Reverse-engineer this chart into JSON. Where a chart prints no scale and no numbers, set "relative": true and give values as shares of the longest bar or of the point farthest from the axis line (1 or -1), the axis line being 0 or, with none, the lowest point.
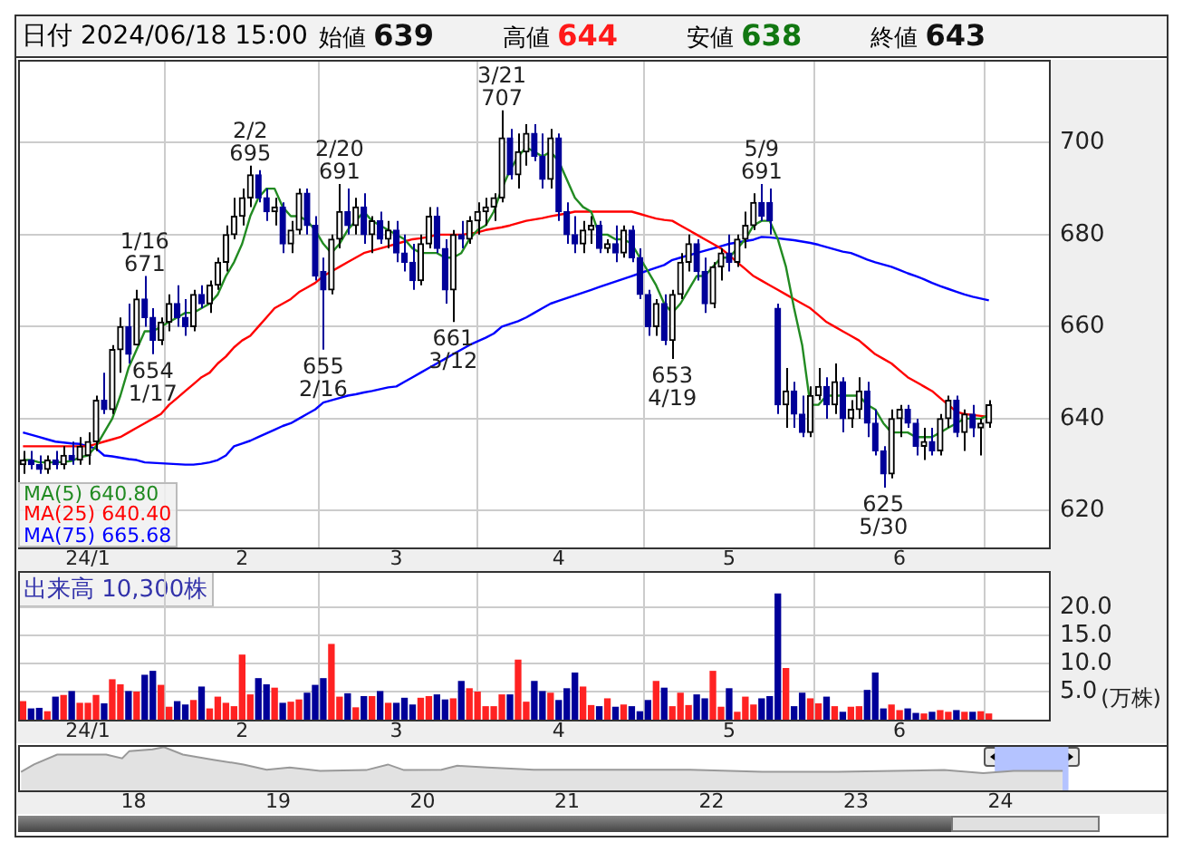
{
  "chart_data": [
    {
      "type": "candlestick",
      "title": "日付 2024/06/18 15:00",
      "annotations": [
        "始値 639",
        "高値 644",
        "安値 638",
        "終値 643",
        {
          "text": "1/16\n671",
          "y": 671
        },
        {
          "text": "654\n1/17",
          "y": 654
        },
        {
          "text": "2/2\n695",
          "y": 695
        },
        {
          "text": "655\n2/16",
          "y": 655
        },
        {
          "text": "2/20\n691",
          "y": 691
        },
        {
          "text": "661\n3/12",
          "y": 661
        },
        {
          "text": "3/21\n707",
          "y": 707
        },
        {
          "text": "653\n4/19",
          "y": 653
        },
        {
          "text": "5/9\n691",
          "y": 691
        },
        {
          "text": "625\n5/30",
          "y": 625
        }
      ],
      "categories": [
        null,
        null,
        null,
        null,
        null,
        null,
        null,
        null,
        "24/1",
        null,
        null,
        null,
        null,
        null,
        null,
        null,
        null,
        null,
        null,
        null,
        null,
        null,
        null,
        null,
        null,
        null,
        null,
        "2",
        null,
        null,
        null,
        null,
        null,
        null,
        null,
        null,
        null,
        null,
        null,
        null,
        null,
        null,
        null,
        null,
        null,
        null,
        "3",
        null,
        null,
        null,
        null,
        null,
        null,
        null,
        null,
        null,
        null,
        null,
        null,
        null,
        null,
        null,
        null,
        null,
        null,
        null,
        "4",
        null,
        null,
        null,
        null,
        null,
        null,
        null,
        null,
        null,
        null,
        null,
        null,
        null,
        null,
        null,
        null,
        null,
        null,
        null,
        null,
        "5",
        null,
        null,
        null,
        null,
        null,
        null,
        null,
        null,
        null,
        null,
        null,
        null,
        null,
        null,
        null,
        null,
        null,
        null,
        null,
        null,
        "6",
        null,
        null,
        null,
        null,
        null,
        null,
        null,
        null,
        null,
        null,
        null
      ],
      "ohlc": [
        [
          630,
          633,
          628,
          631
        ],
        [
          631,
          633,
          629,
          630
        ],
        [
          630,
          632,
          628,
          629
        ],
        [
          629,
          632,
          628,
          631
        ],
        [
          631,
          633,
          629,
          630
        ],
        [
          630,
          634,
          629,
          632
        ],
        [
          632,
          635,
          630,
          631
        ],
        [
          631,
          636,
          630,
          634
        ],
        [
          632,
          637,
          630,
          635
        ],
        [
          635,
          645,
          633,
          644
        ],
        [
          644,
          650,
          641,
          642
        ],
        [
          642,
          656,
          641,
          655
        ],
        [
          655,
          662,
          650,
          660
        ],
        [
          660,
          665,
          652,
          654
        ],
        [
          656,
          668,
          656,
          666
        ],
        [
          666,
          671,
          660,
          662
        ],
        [
          662,
          664,
          654,
          657
        ],
        [
          657,
          662,
          656,
          661
        ],
        [
          661,
          667,
          659,
          665
        ],
        [
          665,
          669,
          660,
          662
        ],
        [
          662,
          666,
          658,
          660
        ],
        [
          660,
          668,
          659,
          667
        ],
        [
          667,
          669,
          664,
          665
        ],
        [
          665,
          670,
          663,
          669
        ],
        [
          669,
          675,
          668,
          674
        ],
        [
          674,
          682,
          672,
          680
        ],
        [
          680,
          688,
          679,
          684
        ],
        [
          684,
          690,
          682,
          688
        ],
        [
          688,
          695,
          686,
          693
        ],
        [
          693,
          694,
          687,
          688
        ],
        [
          688,
          690,
          683,
          685
        ],
        [
          685,
          688,
          682,
          686
        ],
        [
          686,
          687,
          676,
          678
        ],
        [
          678,
          683,
          676,
          681
        ],
        [
          681,
          690,
          680,
          689
        ],
        [
          689,
          690,
          680,
          682
        ],
        [
          682,
          684,
          670,
          671
        ],
        [
          672,
          675,
          655,
          668
        ],
        [
          668,
          680,
          667,
          679
        ],
        [
          679,
          691,
          677,
          685
        ],
        [
          685,
          690,
          680,
          682
        ],
        [
          682,
          688,
          680,
          686
        ],
        [
          686,
          689,
          678,
          680
        ],
        [
          680,
          684,
          676,
          683
        ],
        [
          683,
          685,
          678,
          679
        ],
        [
          679,
          683,
          677,
          681
        ],
        [
          681,
          683,
          674,
          676
        ],
        [
          676,
          680,
          672,
          674
        ],
        [
          674,
          678,
          668,
          670
        ],
        [
          670,
          680,
          669,
          678
        ],
        [
          678,
          686,
          677,
          684
        ],
        [
          684,
          686,
          676,
          677
        ],
        [
          677,
          679,
          665,
          668
        ],
        [
          668,
          681,
          661,
          680
        ],
        [
          680,
          683,
          677,
          679
        ],
        [
          679,
          684,
          678,
          683
        ],
        [
          683,
          687,
          680,
          685
        ],
        [
          685,
          688,
          682,
          686
        ],
        [
          686,
          689,
          683,
          688
        ],
        [
          688,
          707,
          687,
          701
        ],
        [
          701,
          703,
          692,
          693
        ],
        [
          693,
          702,
          690,
          698
        ],
        [
          698,
          704,
          695,
          702
        ],
        [
          702,
          704,
          696,
          697
        ],
        [
          697,
          702,
          690,
          692
        ],
        [
          692,
          703,
          690,
          701
        ],
        [
          701,
          702,
          683,
          685
        ],
        [
          685,
          687,
          678,
          680
        ],
        [
          680,
          684,
          676,
          678
        ],
        [
          678,
          683,
          676,
          681
        ],
        [
          681,
          684,
          678,
          682
        ],
        [
          682,
          683,
          676,
          677
        ],
        [
          677,
          679,
          676,
          678
        ],
        [
          678,
          682,
          674,
          676
        ],
        [
          676,
          682,
          675,
          681
        ],
        [
          681,
          682,
          674,
          675
        ],
        [
          675,
          677,
          666,
          667
        ],
        [
          667,
          668,
          658,
          660
        ],
        [
          660,
          666,
          658,
          665
        ],
        [
          665,
          667,
          656,
          657
        ],
        [
          657,
          668,
          653,
          667
        ],
        [
          667,
          676,
          666,
          674
        ],
        [
          674,
          680,
          672,
          678
        ],
        [
          678,
          679,
          670,
          672
        ],
        [
          672,
          675,
          663,
          665
        ],
        [
          665,
          674,
          664,
          673
        ],
        [
          673,
          677,
          670,
          676
        ],
        [
          676,
          680,
          672,
          674
        ],
        [
          674,
          680,
          673,
          679
        ],
        [
          679,
          685,
          677,
          682
        ],
        [
          682,
          689,
          681,
          687
        ],
        [
          687,
          691,
          683,
          684
        ],
        [
          687,
          690,
          680,
          683
        ],
        [
          664,
          665,
          641,
          643
        ],
        [
          643,
          651,
          638,
          646
        ],
        [
          646,
          648,
          638,
          641
        ],
        [
          641,
          645,
          636,
          637
        ],
        [
          637,
          647,
          636,
          645
        ],
        [
          645,
          651,
          644,
          647
        ],
        [
          647,
          649,
          640,
          643
        ],
        [
          643,
          652,
          641,
          648
        ],
        [
          648,
          649,
          637,
          640
        ],
        [
          640,
          644,
          638,
          642
        ],
        [
          642,
          649,
          640,
          646
        ],
        [
          646,
          648,
          636,
          639
        ],
        [
          639,
          642,
          632,
          633
        ],
        [
          633,
          634,
          625,
          628
        ],
        [
          628,
          642,
          627,
          640
        ],
        [
          640,
          643,
          636,
          642
        ],
        [
          642,
          643,
          638,
          639
        ],
        [
          639,
          640,
          632,
          634
        ],
        [
          634,
          638,
          631,
          635
        ],
        [
          635,
          638,
          632,
          633
        ],
        [
          633,
          641,
          632,
          640
        ],
        [
          640,
          645,
          638,
          644
        ],
        [
          644,
          645,
          636,
          637
        ],
        [
          637,
          642,
          633,
          641
        ],
        [
          641,
          643,
          636,
          638
        ],
        [
          638,
          640,
          632,
          639
        ],
        [
          639,
          644,
          638,
          643
        ]
      ],
      "colors": [
        "#000000",
        "#000099",
        "#000099",
        "#000000",
        "#000099",
        "#000000",
        "#000099",
        "#000000",
        "#000000",
        "#000000",
        "#000099",
        "#000000",
        "#000000",
        "#000099",
        "#000000",
        "#000099",
        "#000099",
        "#000000",
        "#000000",
        "#000099",
        "#000099",
        "#000000",
        "#000099",
        "#000000",
        "#000000",
        "#000000",
        "#000000",
        "#000000",
        "#000000",
        "#000099",
        "#000099",
        "#000000",
        "#000099",
        "#000000",
        "#000000",
        "#000099",
        "#000099",
        "#000099",
        "#000000",
        "#000000",
        "#000099",
        "#000000",
        "#000099",
        "#000000",
        "#000099",
        "#000000",
        "#000099",
        "#000099",
        "#000099",
        "#000000",
        "#000000",
        "#000099",
        "#000099",
        "#000000",
        "#000099",
        "#000000",
        "#000000",
        "#000000",
        "#000000",
        "#000000",
        "#000099",
        "#000000",
        "#000000",
        "#000099",
        "#000099",
        "#000000",
        "#000099",
        "#000099",
        "#000099",
        "#000000",
        "#000000",
        "#000099",
        "#000000",
        "#000099",
        "#000000",
        "#000099",
        "#000099",
        "#000099",
        "#000000",
        "#000099",
        "#000000",
        "#000000",
        "#000000",
        "#000099",
        "#000099",
        "#000000",
        "#000000",
        "#000099",
        "#000000",
        "#000000",
        "#000000",
        "#000099",
        "#000099",
        "#000099",
        "#000000",
        "#000099",
        "#000099",
        "#000000",
        "#000000",
        "#000099",
        "#000000",
        "#000099",
        "#000000",
        "#000000",
        "#000099",
        "#000099",
        "#000099",
        "#000000",
        "#000000",
        "#000099",
        "#000099",
        "#000000",
        "#000099",
        "#000000",
        "#000000",
        "#000099",
        "#000000",
        "#000099",
        "#000000",
        "#000000"
      ],
      "series": [
        {
          "name": "MA(5) 640.80",
          "type": "line",
          "color": "#228b22",
          "values": [
            631,
            631,
            630.5,
            630.5,
            630.5,
            630.6,
            630.8,
            631.6,
            632,
            634,
            637,
            640,
            645,
            651,
            655,
            659,
            659,
            660,
            661,
            662,
            663,
            663,
            664,
            665,
            667,
            671,
            674,
            678,
            684,
            688,
            690,
            690,
            686,
            684,
            684,
            683,
            681,
            678,
            676,
            678,
            681,
            683,
            685,
            683,
            682,
            681,
            680,
            679,
            677,
            676,
            676,
            676,
            675,
            675,
            676,
            679,
            681,
            682,
            685,
            690,
            694,
            697,
            699,
            698,
            697,
            698,
            696,
            692,
            688,
            686,
            685,
            680,
            680,
            679,
            679,
            678,
            675,
            672,
            669,
            665,
            663,
            665,
            668,
            671,
            671,
            673,
            675,
            675,
            677,
            679,
            682,
            683,
            683,
            679,
            673,
            664,
            656,
            643,
            643,
            645,
            645,
            645,
            645,
            645,
            643,
            642,
            639,
            637,
            637,
            637,
            636,
            636,
            636,
            637,
            638,
            639,
            640,
            640,
            640,
            640.8
          ]
        },
        {
          "name": "MA(25) 640.40",
          "type": "line",
          "color": "#ff0000",
          "values": [
            634,
            634,
            634,
            634,
            634,
            634,
            634,
            634,
            634,
            634.5,
            635,
            635.5,
            636,
            637,
            638,
            639,
            640,
            641,
            643,
            644.5,
            646,
            647.5,
            649,
            650,
            652,
            653.5,
            655.5,
            657,
            658,
            660,
            662,
            664,
            665,
            666,
            667.5,
            668.5,
            669.5,
            671,
            672,
            673,
            674,
            675,
            676,
            676.5,
            677,
            677.5,
            678,
            678.5,
            679,
            679.2,
            679.5,
            680,
            680,
            680,
            680,
            680.2,
            680.5,
            681,
            681.3,
            681.6,
            682,
            682.5,
            683,
            683.3,
            683.6,
            684,
            684.3,
            684.6,
            685,
            685,
            685,
            685,
            685,
            685,
            685,
            685,
            684.5,
            684,
            683.5,
            683.2,
            683,
            682,
            681,
            680,
            679,
            678,
            677,
            675.5,
            674,
            672.5,
            671,
            670,
            669,
            668,
            667,
            666,
            665,
            664,
            662.5,
            661,
            660,
            659,
            658,
            657,
            655.5,
            654,
            653,
            652,
            650.5,
            649,
            648,
            647,
            646,
            644.5,
            643,
            641.5,
            641,
            640.8,
            640.6,
            640.4
          ]
        },
        {
          "name": "MA(75) 665.68",
          "type": "line",
          "color": "#0000ff",
          "values": [
            637,
            636.5,
            636,
            635.5,
            635,
            634.8,
            634.6,
            634.5,
            634,
            633.5,
            632,
            631.8,
            631.5,
            631.2,
            631,
            630.5,
            630.4,
            630.3,
            630.2,
            630.1,
            630,
            630,
            630.2,
            630.5,
            631,
            632,
            634,
            634.6,
            635.2,
            636,
            636.8,
            637.6,
            638.4,
            639,
            640,
            641,
            642,
            643.5,
            644,
            644.5,
            645,
            645.3,
            645.7,
            646,
            646.4,
            646.8,
            647,
            648,
            649,
            650,
            651,
            652,
            653,
            654,
            655,
            656,
            656.8,
            657.6,
            658.5,
            660,
            660.6,
            661.2,
            662,
            663,
            664,
            665,
            665.6,
            666.2,
            666.8,
            667.4,
            668,
            668.6,
            669.2,
            669.8,
            670.4,
            671,
            671.6,
            672.2,
            672.8,
            673.4,
            674.5,
            675,
            675.5,
            676,
            676.5,
            677,
            677.5,
            678,
            678.3,
            678.6,
            678.9,
            679.5,
            679.4,
            679.2,
            679,
            678.8,
            678.5,
            678.2,
            677.8,
            677.3,
            676.8,
            676.3,
            676,
            675.3,
            674.6,
            674,
            673.5,
            673,
            672.3,
            671.6,
            671,
            670.3,
            669.5,
            668.8,
            668.2,
            667.6,
            667,
            666.5,
            666.1,
            665.7
          ]
        }
      ],
      "ylim": [
        612,
        718
      ],
      "yticks": [
        620,
        640,
        660,
        680,
        700
      ],
      "grid": true,
      "legend": "bottom left",
      "marker": "none"
    },
    {
      "type": "bar",
      "ylabel": "(万株)",
      "annotations": [
        "出来高 10,300株"
      ],
      "categories": [
        null,
        null,
        null,
        null,
        null,
        null,
        null,
        null,
        "24/1",
        null,
        null,
        null,
        null,
        null,
        null,
        null,
        null,
        null,
        null,
        null,
        null,
        null,
        null,
        null,
        null,
        null,
        null,
        "2",
        null,
        null,
        null,
        null,
        null,
        null,
        null,
        null,
        null,
        null,
        null,
        null,
        null,
        null,
        null,
        null,
        null,
        null,
        "3",
        null,
        null,
        null,
        null,
        null,
        null,
        null,
        null,
        null,
        null,
        null,
        null,
        null,
        null,
        null,
        null,
        null,
        null,
        null,
        "4",
        null,
        null,
        null,
        null,
        null,
        null,
        null,
        null,
        null,
        null,
        null,
        null,
        null,
        null,
        null,
        null,
        null,
        null,
        null,
        null,
        "5",
        null,
        null,
        null,
        null,
        null,
        null,
        null,
        null,
        null,
        null,
        null,
        null,
        null,
        null,
        null,
        null,
        null,
        null,
        null,
        null,
        "6",
        null,
        null,
        null,
        null,
        null,
        null,
        null,
        null,
        null,
        null,
        null
      ],
      "values": [
        3.2,
        1.9,
        2.0,
        1.4,
        4.0,
        4.3,
        5.0,
        2.9,
        2.9,
        4.3,
        2.8,
        7.1,
        6.2,
        5.0,
        4.9,
        7.9,
        8.6,
        6.1,
        2.2,
        3.2,
        2.6,
        3.4,
        5.8,
        1.9,
        4.0,
        2.9,
        2.3,
        11.5,
        4.4,
        7.3,
        6.2,
        5.6,
        2.9,
        3.1,
        3.5,
        4.7,
        6.1,
        7.3,
        13.4,
        4.0,
        4.6,
        2.1,
        4.1,
        4.1,
        5.0,
        2.9,
        2.9,
        3.8,
        2.6,
        3.8,
        4.1,
        4.4,
        3.5,
        3.7,
        6.8,
        5.5,
        4.9,
        2.3,
        2.3,
        4.4,
        4.4,
        10.6,
        3.1,
        6.8,
        5.0,
        4.7,
        3.4,
        5.5,
        8.3,
        5.8,
        2.5,
        2.3,
        3.7,
        2.2,
        2.6,
        2.3,
        1.4,
        3.4,
        6.8,
        5.6,
        2.3,
        4.7,
        2.5,
        4.4,
        3.7,
        8.6,
        2.2,
        5.5,
        1.3,
        4.0,
        2.6,
        3.7,
        4.1,
        22.4,
        9.1,
        2.3,
        4.7,
        3.7,
        2.8,
        4.0,
        2.3,
        1.3,
        2.2,
        2.3,
        5.2,
        8.3,
        1.9,
        2.6,
        1.6,
        1.9,
        1.1,
        1.0,
        1.3,
        1.6,
        1.3,
        1.6,
        1.3,
        1.3,
        1.4,
        1.0
      ],
      "colors": [
        "#ff2222",
        "#000099",
        "#000099",
        "#ff2222",
        "#000099",
        "#ff2222",
        "#000099",
        "#ff2222",
        "#ff2222",
        "#ff2222",
        "#000099",
        "#ff2222",
        "#ff2222",
        "#000099",
        "#ff2222",
        "#000099",
        "#000099",
        "#ff2222",
        "#ff2222",
        "#000099",
        "#000099",
        "#ff2222",
        "#000099",
        "#ff2222",
        "#ff2222",
        "#ff2222",
        "#ff2222",
        "#ff2222",
        "#ff2222",
        "#000099",
        "#000099",
        "#ff2222",
        "#000099",
        "#ff2222",
        "#ff2222",
        "#000099",
        "#000099",
        "#000099",
        "#ff2222",
        "#ff2222",
        "#000099",
        "#ff2222",
        "#000099",
        "#ff2222",
        "#000099",
        "#ff2222",
        "#000099",
        "#000099",
        "#000099",
        "#ff2222",
        "#ff2222",
        "#000099",
        "#000099",
        "#ff2222",
        "#000099",
        "#ff2222",
        "#ff2222",
        "#ff2222",
        "#ff2222",
        "#ff2222",
        "#000099",
        "#ff2222",
        "#ff2222",
        "#000099",
        "#000099",
        "#ff2222",
        "#000099",
        "#000099",
        "#000099",
        "#ff2222",
        "#ff2222",
        "#000099",
        "#ff2222",
        "#000099",
        "#ff2222",
        "#000099",
        "#000099",
        "#000099",
        "#ff2222",
        "#000099",
        "#ff2222",
        "#ff2222",
        "#ff2222",
        "#000099",
        "#000099",
        "#ff2222",
        "#ff2222",
        "#000099",
        "#ff2222",
        "#ff2222",
        "#ff2222",
        "#000099",
        "#000099",
        "#000099",
        "#ff2222",
        "#000099",
        "#000099",
        "#ff2222",
        "#ff2222",
        "#000099",
        "#ff2222",
        "#000099",
        "#ff2222",
        "#ff2222",
        "#000099",
        "#000099",
        "#000099",
        "#ff2222",
        "#ff2222",
        "#000099",
        "#000099",
        "#ff2222",
        "#000099",
        "#ff2222",
        "#ff2222",
        "#000099",
        "#ff2222",
        "#000099",
        "#ff2222",
        "#ff2222"
      ],
      "ylim": [
        0,
        26.5
      ],
      "yticks": [
        {
          "value": 5,
          "label": "5.0"
        },
        {
          "value": 10,
          "label": "10.0"
        },
        {
          "value": 15,
          "label": "15.0"
        },
        {
          "value": 20,
          "label": "20.0"
        }
      ],
      "grid": true
    },
    {
      "type": "area",
      "relative": true,
      "color": "#999999",
      "tick_labels": "x",
      "x": [
        2017.22,
        2017.31,
        2017.47,
        2017.6,
        2017.81,
        2017.92,
        2017.97,
        2018.13,
        2018.21,
        2018.34,
        2018.55,
        2018.76,
        2018.92,
        2019.08,
        2019.29,
        2019.61,
        2019.76,
        2019.87,
        2020.13,
        2020.24,
        2020.45,
        2020.77,
        2021.82,
        2022.35,
        2022.87,
        2023.61,
        2023.88,
        2024.09,
        2024.43
      ],
      "values": [
        0.43,
        0.6,
        0.83,
        0.83,
        0.83,
        0.74,
        0.91,
        0.95,
        1,
        0.83,
        0.71,
        0.6,
        0.48,
        0.53,
        0.45,
        0.47,
        0.6,
        0.47,
        0.48,
        0.57,
        0.53,
        0.48,
        0.48,
        0.43,
        0.43,
        0.47,
        0.4,
        0.45,
        0.45
      ],
      "bands": [
        {
          "axis": "x",
          "from": 2023.96,
          "to": 2024.47,
          "color": "#b4c3ff"
        }
      ],
      "xlim": [
        2017.2,
        2025.15
      ],
      "xticks": [
        {
          "value": 2018,
          "label": "18"
        },
        {
          "value": 2019,
          "label": "19"
        },
        {
          "value": 2020,
          "label": "20"
        },
        {
          "value": 2021,
          "label": "21"
        },
        {
          "value": 2022,
          "label": "22"
        },
        {
          "value": 2023,
          "label": "23"
        },
        {
          "value": 2024,
          "label": "24"
        }
      ]
    }
  ]
}
